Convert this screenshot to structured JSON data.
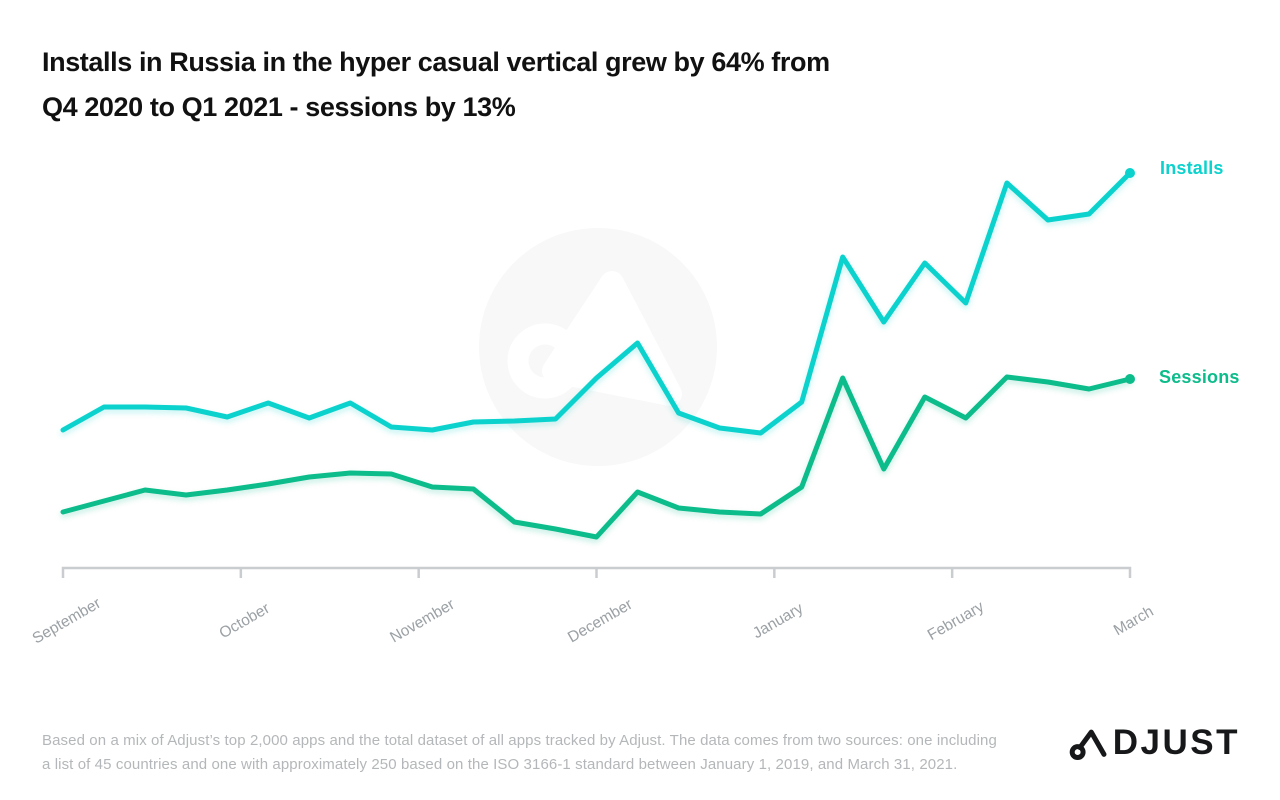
{
  "title": {
    "line1": "Installs in Russia in the hyper casual vertical grew by 64% from",
    "line2": "Q4 2020 to Q1 2021 - sessions by 13%"
  },
  "legend": {
    "installs": "Installs",
    "sessions": "Sessions"
  },
  "footer": {
    "line1": "Based on a mix of Adjust’s top 2,000 apps and the total dataset of all apps tracked by Adjust. The data comes from two sources: one including",
    "line2": "a list of 45 countries and one with approximately 250 based on the ISO 3166-1 standard between January 1, 2019, and March 31, 2021."
  },
  "logo": {
    "text": "ADJUST"
  },
  "colors": {
    "installs": "#0bd2cd",
    "sessions": "#0cbc8a",
    "axis": "#c9cdd0",
    "tick_label": "#9aa0a4",
    "title_text": "#111111",
    "footer_text": "#b4b7b9",
    "watermark": "#f8f8f8"
  },
  "chart_data": {
    "type": "line",
    "title": "Installs in Russia in the hyper casual vertical grew by 64% from Q4 2020 to Q1 2021 - sessions by 13%",
    "categories": [
      "September",
      "October",
      "November",
      "December",
      "January",
      "February",
      "March"
    ],
    "x_tick_rotation_deg": -30,
    "y_axis_visible": false,
    "values_unit": "relative index (chart displays no numeric y-axis); ~4 points per month, weekly cadence",
    "legend_position": "right-of-line-ends",
    "grid": false,
    "series": [
      {
        "name": "Installs",
        "color": "#0bd2cd",
        "values": [
          138,
          161,
          161,
          160,
          151,
          165,
          150,
          165,
          141,
          138,
          146,
          147,
          149,
          190,
          225,
          155,
          140,
          135,
          166,
          311,
          246,
          305,
          265,
          385,
          348,
          354,
          395
        ]
      },
      {
        "name": "Sessions",
        "color": "#0cbc8a",
        "values": [
          56,
          67,
          78,
          73,
          78,
          84,
          91,
          95,
          94,
          81,
          79,
          46,
          39,
          31,
          76,
          60,
          56,
          54,
          81,
          190,
          99,
          171,
          150,
          191,
          186,
          179,
          189
        ]
      }
    ]
  }
}
